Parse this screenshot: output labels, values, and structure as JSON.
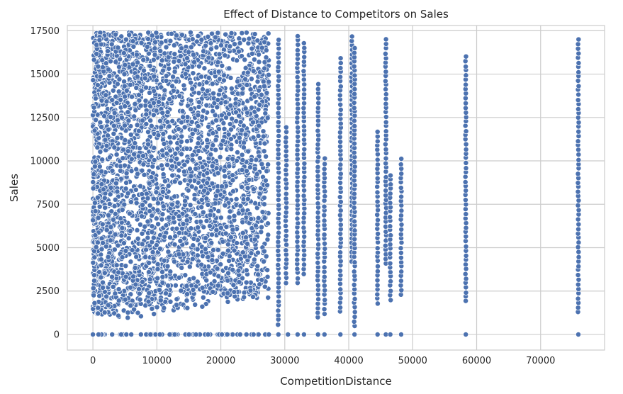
{
  "chart_data": {
    "type": "scatter",
    "title": "Effect of Distance to Competitors on Sales",
    "xlabel": "CompetitionDistance",
    "ylabel": "Sales",
    "xlim": [
      -4000,
      80000
    ],
    "ylim": [
      -900,
      17800
    ],
    "x_ticks": [
      0,
      10000,
      20000,
      30000,
      40000,
      50000,
      60000,
      70000
    ],
    "y_ticks": [
      0,
      2500,
      5000,
      7500,
      10000,
      12500,
      15000,
      17500
    ],
    "x_tick_labels": [
      "0",
      "10000",
      "20000",
      "30000",
      "40000",
      "50000",
      "60000",
      "70000"
    ],
    "y_tick_labels": [
      "0",
      "2500",
      "5000",
      "7500",
      "10000",
      "12500",
      "15000",
      "17500"
    ],
    "grid": true,
    "point_color": "#4c72b0",
    "dense_region": {
      "x_range": [
        0,
        27500
      ],
      "y_range": [
        500,
        17400
      ],
      "note_zero_sales": true
    },
    "distance_columns": [
      {
        "x": 29000,
        "y_min": 600,
        "y_max": 17000
      },
      {
        "x": 30200,
        "y_min": 3000,
        "y_max": 11900
      },
      {
        "x": 32000,
        "y_min": 3000,
        "y_max": 17200
      },
      {
        "x": 33000,
        "y_min": 3500,
        "y_max": 16800
      },
      {
        "x": 35200,
        "y_min": 1000,
        "y_max": 14400
      },
      {
        "x": 36200,
        "y_min": 1200,
        "y_max": 10100
      },
      {
        "x": 38700,
        "y_min": 1300,
        "y_max": 15900
      },
      {
        "x": 40500,
        "y_min": 4200,
        "y_max": 17200
      },
      {
        "x": 40900,
        "y_min": 500,
        "y_max": 16500
      },
      {
        "x": 44500,
        "y_min": 1800,
        "y_max": 11700
      },
      {
        "x": 45800,
        "y_min": 4100,
        "y_max": 17000
      },
      {
        "x": 46500,
        "y_min": 2000,
        "y_max": 9200
      },
      {
        "x": 48200,
        "y_min": 2300,
        "y_max": 10100
      },
      {
        "x": 58300,
        "y_min": 1900,
        "y_max": 16000
      },
      {
        "x": 75900,
        "y_min": 1300,
        "y_max": 17000
      }
    ],
    "zero_sales_x": [
      0,
      3000,
      6000,
      9000,
      12000,
      15000,
      18000,
      21000,
      24000,
      27500,
      29000,
      30500,
      32000,
      33000,
      35200,
      36200,
      38700,
      40900,
      44500,
      45800,
      46500,
      48200,
      58300,
      75900
    ]
  }
}
